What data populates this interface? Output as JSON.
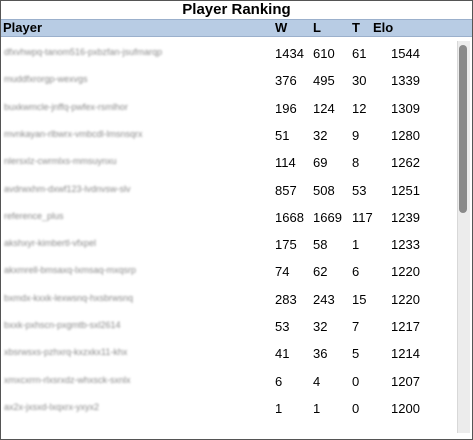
{
  "title": "Player Ranking",
  "columns": {
    "player": "Player",
    "w": "W",
    "l": "L",
    "t": "T",
    "elo": "Elo"
  },
  "rows": [
    {
      "name": "dfxvhwpq-tanom516-pxbzfan-jsufmarqp",
      "w": "1434",
      "l": "610",
      "t": "61",
      "elo": "1544"
    },
    {
      "name": "muddfxrorgp-wexvgs",
      "w": "376",
      "l": "495",
      "t": "30",
      "elo": "1339"
    },
    {
      "name": "buxkwmcle-jnffq-pwfex-rsmlhor",
      "w": "196",
      "l": "124",
      "t": "12",
      "elo": "1309"
    },
    {
      "name": "mvnkayan-rlbwrx-vmbcdl-lmsnsqrx",
      "w": "51",
      "l": "32",
      "t": "9",
      "elo": "1280"
    },
    {
      "name": "nlersxlz-cwrmlxs-mmsuynxu",
      "w": "114",
      "l": "69",
      "t": "8",
      "elo": "1262"
    },
    {
      "name": "avdrwxhm-dxwf123-lvdnvsw-slv",
      "w": "857",
      "l": "508",
      "t": "53",
      "elo": "1251"
    },
    {
      "name": "reference_plus",
      "w": "1668",
      "l": "1669",
      "t": "117",
      "elo": "1239"
    },
    {
      "name": "akshxyr-kimbertl-vfxpel",
      "w": "175",
      "l": "58",
      "t": "1",
      "elo": "1233"
    },
    {
      "name": "akxmrell-bmsaxq-lxmsaq-mxqsrp",
      "w": "74",
      "l": "62",
      "t": "6",
      "elo": "1220"
    },
    {
      "name": "bxmdx-kxxk-lexwsnq-hxsbrwsnq",
      "w": "283",
      "l": "243",
      "t": "15",
      "elo": "1220"
    },
    {
      "name": "bxxk-pxhscn-pxgmtb-sxl2614",
      "w": "53",
      "l": "32",
      "t": "7",
      "elo": "1217"
    },
    {
      "name": "xbsrwsxs-pzhxrq-kxzxkx11-khx",
      "w": "41",
      "l": "36",
      "t": "5",
      "elo": "1214"
    },
    {
      "name": "xmxcxrrn-rlxsrxdz-whxsck-sxnlx",
      "w": "6",
      "l": "4",
      "t": "0",
      "elo": "1207"
    },
    {
      "name": "ax2x-jxsxd-lxqxrx-yxyx2",
      "w": "1",
      "l": "1",
      "t": "0",
      "elo": "1200"
    }
  ]
}
